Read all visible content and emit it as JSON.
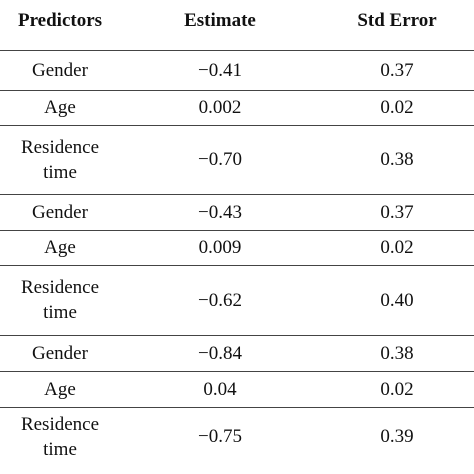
{
  "table": {
    "header": [
      "Predictors",
      "Estimate",
      "Std Error"
    ],
    "rows": [
      [
        "Gender",
        "−0.41",
        "0.37"
      ],
      [
        "Age",
        "0.002",
        "0.02"
      ],
      [
        "Residence time",
        "−0.70",
        "0.38"
      ],
      [
        "Gender",
        "−0.43",
        "0.37"
      ],
      [
        "Age",
        "0.009",
        "0.02"
      ],
      [
        "Residence time",
        "−0.62",
        "0.40"
      ],
      [
        "Gender",
        "−0.84",
        "0.38"
      ],
      [
        "Age",
        "0.04",
        "0.02"
      ],
      [
        "Residence time",
        "−0.75",
        "0.39"
      ]
    ]
  }
}
